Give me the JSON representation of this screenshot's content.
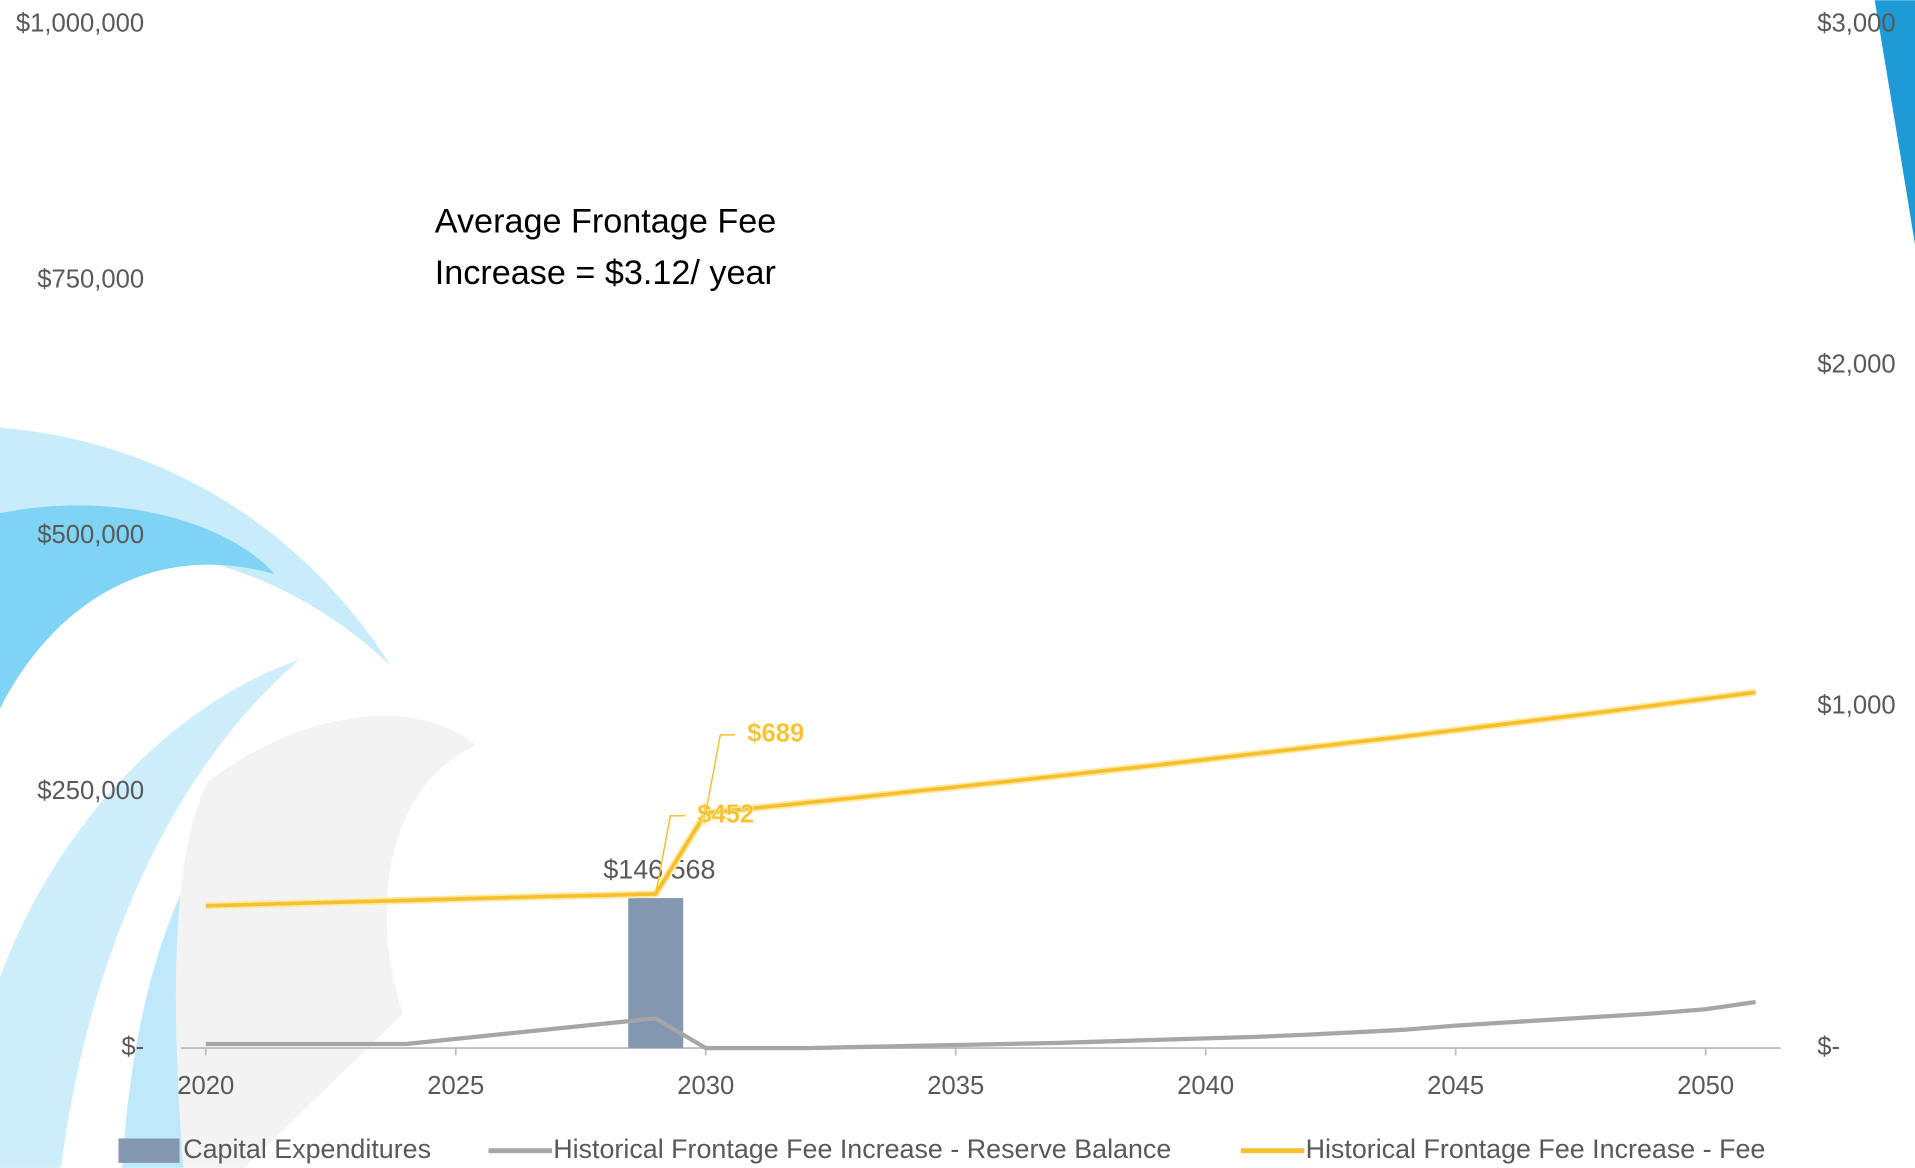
{
  "chart_data": {
    "type": "combo",
    "annotation": [
      "Average Frontage Fee",
      "Increase = $3.12/ year"
    ],
    "x": [
      2020,
      2021,
      2022,
      2023,
      2024,
      2025,
      2026,
      2027,
      2028,
      2029,
      2030,
      2031,
      2032,
      2033,
      2034,
      2035,
      2036,
      2037,
      2038,
      2039,
      2040,
      2041,
      2042,
      2043,
      2044,
      2045,
      2046,
      2047,
      2048,
      2049,
      2050,
      2051
    ],
    "xlim": [
      2019.5,
      2051.5
    ],
    "xticks": [
      2020,
      2025,
      2030,
      2035,
      2040,
      2045,
      2050
    ],
    "ylim": [
      0,
      1000000
    ],
    "yticks": [
      {
        "value": 0,
        "label": "$-"
      },
      {
        "value": 250000,
        "label": "$250,000"
      },
      {
        "value": 500000,
        "label": "$500,000"
      },
      {
        "value": 750000,
        "label": "$750,000"
      },
      {
        "value": 1000000,
        "label": "$1,000,000"
      }
    ],
    "y2lim": [
      0,
      3000
    ],
    "y2ticks": [
      {
        "value": 0,
        "label": "$-"
      },
      {
        "value": 1000,
        "label": "$1,000"
      },
      {
        "value": 2000,
        "label": "$2,000"
      },
      {
        "value": 3000,
        "label": "$3,000"
      }
    ],
    "series": [
      {
        "name": "Capital Expenditures",
        "type": "bar",
        "color": "#8497b0",
        "values": [
          null,
          null,
          null,
          null,
          null,
          null,
          null,
          null,
          null,
          146568,
          null,
          null,
          null,
          null,
          null,
          null,
          null,
          null,
          null,
          null,
          null,
          null,
          null,
          null,
          null,
          null,
          null,
          null,
          null,
          null,
          null,
          null
        ],
        "value_labels": [
          null,
          null,
          null,
          null,
          null,
          null,
          null,
          null,
          null,
          "$146,568",
          null,
          null,
          null,
          null,
          null,
          null,
          null,
          null,
          null,
          null,
          null,
          null,
          null,
          null,
          null,
          null,
          null,
          null,
          null,
          null,
          null,
          null
        ]
      },
      {
        "name": "Historical Frontage Fee Increase - Reserve Balance",
        "type": "line",
        "color": "#a6a6a6",
        "values": [
          4000,
          4000,
          4000,
          4000,
          4000,
          9000,
          14000,
          19000,
          24000,
          29000,
          0,
          0,
          0,
          1000,
          2000,
          3000,
          4000,
          5000,
          6500,
          8000,
          9500,
          11000,
          13000,
          15500,
          18000,
          22000,
          25000,
          28000,
          31000,
          34000,
          38000,
          45000
        ]
      },
      {
        "name": "Historical Frontage Fee Increase - Fee",
        "type": "line",
        "color": "#f5c02c",
        "axis": "y2",
        "values": [
          417,
          421,
          425,
          429,
          433,
          437,
          441,
          445,
          448,
          452,
          689,
          704,
          719,
          734,
          750,
          765,
          781,
          797,
          813,
          829,
          846,
          863,
          880,
          897,
          914,
          932,
          950,
          968,
          986,
          1005,
          1024,
          1043
        ],
        "value_labels": [
          null,
          null,
          null,
          null,
          null,
          null,
          null,
          null,
          null,
          "$452",
          "$689",
          null,
          null,
          null,
          null,
          null,
          null,
          null,
          null,
          null,
          null,
          null,
          null,
          null,
          null,
          null,
          null,
          null,
          null,
          null,
          null,
          null
        ]
      }
    ],
    "legend": "bottom"
  }
}
